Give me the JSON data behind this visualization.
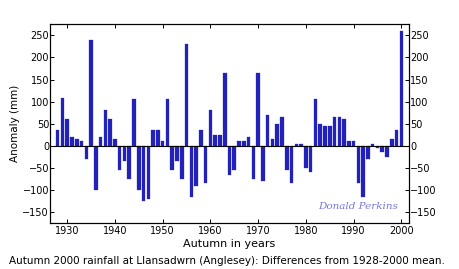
{
  "years": [
    1928,
    1929,
    1930,
    1931,
    1932,
    1933,
    1934,
    1935,
    1936,
    1937,
    1938,
    1939,
    1940,
    1941,
    1942,
    1943,
    1944,
    1945,
    1946,
    1947,
    1948,
    1949,
    1950,
    1951,
    1952,
    1953,
    1954,
    1955,
    1956,
    1957,
    1958,
    1959,
    1960,
    1961,
    1962,
    1963,
    1964,
    1965,
    1966,
    1967,
    1968,
    1969,
    1970,
    1971,
    1972,
    1973,
    1974,
    1975,
    1976,
    1977,
    1978,
    1979,
    1980,
    1981,
    1982,
    1983,
    1984,
    1985,
    1986,
    1987,
    1988,
    1989,
    1990,
    1991,
    1992,
    1993,
    1994,
    1995,
    1996,
    1997,
    1998,
    1999,
    2000
  ],
  "values": [
    35,
    108,
    60,
    20,
    15,
    10,
    -30,
    240,
    -100,
    20,
    80,
    60,
    15,
    -55,
    -35,
    -75,
    105,
    -100,
    -125,
    -120,
    35,
    35,
    10,
    105,
    -55,
    -35,
    -75,
    230,
    -115,
    -90,
    35,
    -85,
    80,
    25,
    25,
    165,
    -65,
    -55,
    10,
    10,
    20,
    -75,
    165,
    -80,
    70,
    15,
    50,
    65,
    -55,
    -85,
    5,
    5,
    -50,
    -60,
    105,
    50,
    45,
    45,
    65,
    65,
    60,
    10,
    10,
    -85,
    -115,
    -30,
    5,
    -5,
    -15,
    -25,
    15,
    35,
    260
  ],
  "bar_color": "#2222bb",
  "ylabel_left": "Anomaly (mm)",
  "xlabel": "Autumn in years",
  "ylim": [
    -175,
    275
  ],
  "yticks": [
    -150,
    -100,
    -50,
    0,
    50,
    100,
    150,
    200,
    250
  ],
  "xticks": [
    1930,
    1940,
    1950,
    1960,
    1970,
    1980,
    1990,
    2000
  ],
  "watermark_text": "Donald Perkins",
  "watermark_color": "#7777dd",
  "caption": "Autumn 2000 rainfall at Llansadwrn (Anglesey): Differences from 1928-2000 mean.",
  "background_color": "#ffffff",
  "bar_width": 0.75,
  "figure_width": 4.59,
  "figure_height": 2.69,
  "dpi": 100
}
